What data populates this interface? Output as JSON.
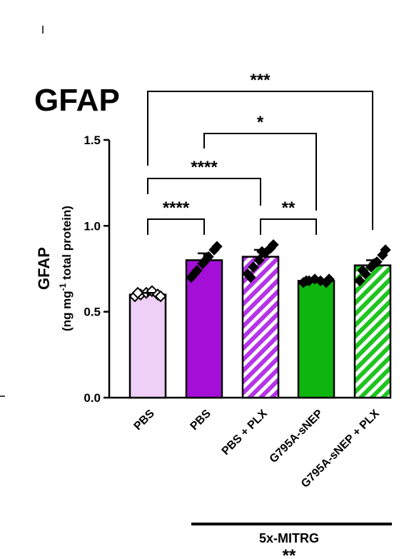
{
  "chart_data": {
    "type": "bar",
    "title": "GFAP",
    "ylabel": "GFAP",
    "ylabel_sub": "(ng mg",
    "ylabel_sup": "-1",
    "ylabel_sub_end": " total protein)",
    "ylim": [
      0,
      1.5
    ],
    "yticks": [
      "0.0",
      "0.5",
      "1.0",
      "1.5"
    ],
    "categories": [
      "PBS",
      "PBS",
      "PBS + PLX",
      "G795A-sNEP",
      "G795A-sNEP + PLX"
    ],
    "values": [
      0.6,
      0.8,
      0.82,
      0.68,
      0.77
    ],
    "errors": [
      0.01,
      0.04,
      0.04,
      0.01,
      0.03
    ],
    "bar_colors": [
      "#eecff5",
      "#a30fd6",
      "#b534e8",
      "#0fb50f",
      "#1fc41f"
    ],
    "bar_hatched": [
      false,
      false,
      true,
      false,
      true
    ],
    "points": [
      [
        0.59,
        0.6,
        0.61,
        0.62,
        0.6,
        0.59,
        0.61
      ],
      [
        0.7,
        0.74,
        0.78,
        0.82,
        0.86,
        0.88,
        0.72,
        0.8
      ],
      [
        0.72,
        0.76,
        0.8,
        0.84,
        0.87,
        0.89,
        0.7,
        0.85
      ],
      [
        0.67,
        0.68,
        0.69,
        0.68,
        0.67,
        0.69,
        0.68
      ],
      [
        0.68,
        0.72,
        0.76,
        0.79,
        0.83,
        0.86,
        0.74,
        0.78
      ]
    ],
    "point_markers": [
      "open-diamond",
      "diamond",
      "diamond",
      "diamond",
      "diamond"
    ],
    "significance": [
      {
        "from": 0,
        "to": 1,
        "label": "****"
      },
      {
        "from": 0,
        "to": 2,
        "label": "****"
      },
      {
        "from": 2,
        "to": 3,
        "label": "**"
      },
      {
        "from": 1,
        "to": 3,
        "label": "*"
      },
      {
        "from": 0,
        "to": 4,
        "label": "***"
      }
    ],
    "group_label": "5x-MITRG",
    "group_sig": "**"
  }
}
